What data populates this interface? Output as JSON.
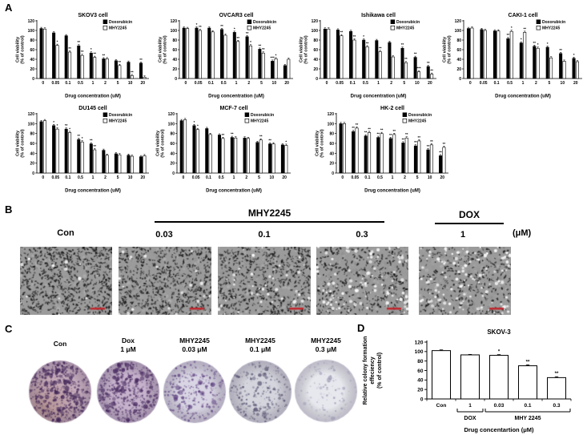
{
  "panels": {
    "a": {
      "label": "A"
    },
    "b": {
      "label": "B",
      "mhy_header": "MHY2245",
      "dox_header": "DOX",
      "cols": [
        "Con",
        "0.03",
        "0.1",
        "0.3",
        "1"
      ],
      "unit": "(μM)",
      "images": [
        {
          "name": "microscopy-con",
          "dark": 760,
          "white": 12,
          "seed": 11
        },
        {
          "name": "microscopy-mhy-0.03",
          "dark": 700,
          "white": 20,
          "seed": 22
        },
        {
          "name": "microscopy-mhy-0.1",
          "dark": 620,
          "white": 40,
          "seed": 33
        },
        {
          "name": "microscopy-mhy-0.3",
          "dark": 430,
          "white": 95,
          "seed": 44
        },
        {
          "name": "microscopy-dox-1",
          "dark": 380,
          "white": 115,
          "seed": 55
        }
      ],
      "scalebar_color": "#c0272d"
    },
    "c": {
      "label": "C",
      "dishes": [
        {
          "line1": "Con",
          "line2": "",
          "base": "#c9b0c2",
          "dot": "#3f2356",
          "dots": 560,
          "blobs": 60,
          "tint": true,
          "seed": 7
        },
        {
          "line1": "Dox",
          "line2": "1 μM",
          "base": "#c6b2cc",
          "dot": "#46285e",
          "dots": 500,
          "blobs": 50,
          "tint": false,
          "seed": 17
        },
        {
          "line1": "MHY2245",
          "line2": "0.03 μM",
          "base": "#d9d5e4",
          "dot": "#5c3f7e",
          "dots": 280,
          "blobs": 25,
          "tint": false,
          "seed": 27
        },
        {
          "line1": "MHY2245",
          "line2": "0.1 μM",
          "base": "#d5d5de",
          "dot": "#54506e",
          "dots": 230,
          "blobs": 18,
          "tint": false,
          "seed": 37
        },
        {
          "line1": "MHY2245",
          "line2": "0.3 μM",
          "base": "#e7e8ee",
          "dot": "#9a9ab4",
          "dots": 130,
          "blobs": 8,
          "tint": false,
          "seed": 47
        }
      ]
    },
    "d": {
      "label": "D"
    }
  },
  "chart_data": [
    {
      "id": "skov3",
      "type": "bar",
      "title": "SKOV3 cell",
      "categories": [
        "0",
        "0.05",
        "0.1",
        "0.5",
        "1",
        "2",
        "5",
        "10",
        "20"
      ],
      "series": [
        {
          "name": "Doxorubicin",
          "fill": "#000000",
          "values": [
            104,
            95,
            89,
            68,
            53,
            41,
            37,
            34,
            32
          ],
          "sig": [
            "",
            "",
            "",
            "**",
            "*",
            "**",
            "",
            "",
            "**"
          ]
        },
        {
          "name": "MHY2245",
          "fill": "#ffffff",
          "values": [
            103,
            69,
            55,
            48,
            44,
            41,
            27,
            6,
            3
          ],
          "sig": [
            "",
            "*",
            "**",
            "**",
            "**",
            "",
            "**",
            "**",
            ""
          ]
        }
      ],
      "ylabel_lines": [
        "Cell viability",
        "(% of control)"
      ],
      "xlabel": "Drug concentration (uM)",
      "ylim": [
        0,
        120
      ],
      "yticks": [
        0,
        20,
        40,
        60,
        80,
        100,
        120
      ],
      "err": 2.5,
      "legend": true
    },
    {
      "id": "ovcar3",
      "type": "bar",
      "title": "OVCAR3 cell",
      "categories": [
        "0",
        "0.05",
        "0.1",
        "0.5",
        "1",
        "2",
        "5",
        "10",
        "20"
      ],
      "series": [
        {
          "name": "Doxorubicin",
          "fill": "#000000",
          "values": [
            105,
            105,
            105,
            102,
            96,
            87,
            61,
            36,
            27
          ],
          "sig": [
            "",
            "*",
            "",
            "**",
            "*",
            "**",
            "**",
            "***",
            ""
          ]
        },
        {
          "name": "MHY2245",
          "fill": "#ffffff",
          "values": [
            104,
            100,
            97,
            90,
            77,
            68,
            53,
            41,
            40
          ],
          "sig": [
            "",
            "**",
            "",
            "",
            "**",
            "*",
            "**",
            "*",
            ""
          ]
        }
      ],
      "ylabel_lines": [
        "Cell viability",
        "(% of control)"
      ],
      "xlabel": "Drug concentration (uM)",
      "ylim": [
        0,
        120
      ],
      "yticks": [
        0,
        20,
        40,
        60,
        80,
        100,
        120
      ],
      "err": 2.5,
      "legend": true
    },
    {
      "id": "ishikawa",
      "type": "bar",
      "title": "Ishikawa cell",
      "categories": [
        "0",
        "0.05",
        "0.1",
        "0.5",
        "1",
        "2",
        "5",
        "10",
        "20"
      ],
      "series": [
        {
          "name": "Doxorubicin",
          "fill": "#000000",
          "values": [
            103,
            101,
            98,
            80,
            79,
            75,
            63,
            44,
            25
          ],
          "sig": [
            "",
            "",
            "",
            "*",
            "",
            "",
            "**",
            "**",
            "**"
          ]
        },
        {
          "name": "MHY2245",
          "fill": "#ffffff",
          "values": [
            103,
            89,
            80,
            66,
            56,
            45,
            33,
            14,
            9
          ],
          "sig": [
            "",
            "**",
            "**",
            "**",
            "**",
            "",
            "**",
            "***",
            "**"
          ]
        }
      ],
      "ylabel_lines": [
        "Cell viability",
        "(% of control)"
      ],
      "xlabel": "Drug concentration (uM)",
      "ylim": [
        0,
        120
      ],
      "yticks": [
        0,
        20,
        40,
        60,
        80,
        100,
        120
      ],
      "err": 2.5,
      "legend": true
    },
    {
      "id": "caki1",
      "type": "bar",
      "title": "CAKI-1 cell",
      "categories": [
        "0",
        "0.05",
        "0.1",
        "0.5",
        "1",
        "2",
        "5",
        "10",
        "20"
      ],
      "series": [
        {
          "name": "Doxorubicin",
          "fill": "#000000",
          "values": [
            104,
            102,
            99,
            83,
            74,
            67,
            65,
            52,
            42
          ],
          "sig": [
            "",
            "",
            "",
            "**",
            "*",
            "**",
            "*",
            "**",
            "*"
          ]
        },
        {
          "name": "MHY2245",
          "fill": "#ffffff",
          "values": [
            105,
            100,
            99,
            98,
            96,
            63,
            43,
            36,
            35
          ],
          "sig": [
            "",
            "",
            "",
            "*",
            "**",
            "*",
            "",
            "",
            ""
          ]
        }
      ],
      "ylabel_lines": [
        "Cell viability",
        "(% of control)"
      ],
      "xlabel": "Drug concentration (uM)",
      "ylim": [
        0,
        120
      ],
      "yticks": [
        0,
        20,
        40,
        60,
        80,
        100,
        120
      ],
      "err": 2.5,
      "legend": true
    },
    {
      "id": "du145",
      "type": "bar",
      "title": "DU145 cell",
      "categories": [
        "0",
        "0.05",
        "0.1",
        "0.5",
        "1",
        "2",
        "5",
        "10",
        "20"
      ],
      "series": [
        {
          "name": "Doxorubicin",
          "fill": "#000000",
          "values": [
            104,
            96,
            89,
            68,
            59,
            46,
            39,
            36,
            33
          ],
          "sig": [
            "",
            "*",
            "**",
            "**",
            "**",
            "",
            "",
            "",
            ""
          ]
        },
        {
          "name": "MHY2245",
          "fill": "#ffffff",
          "values": [
            106,
            89,
            82,
            63,
            47,
            36,
            37,
            34,
            35
          ],
          "sig": [
            "",
            "*",
            "*",
            "*",
            "**",
            "",
            "",
            "",
            ""
          ]
        }
      ],
      "ylabel_lines": [
        "Cell viability",
        "(% of control)"
      ],
      "xlabel": "Drug concentration (uM)",
      "ylim": [
        0,
        120
      ],
      "yticks": [
        0,
        20,
        40,
        60,
        80,
        100,
        120
      ],
      "err": 2.5,
      "legend": true
    },
    {
      "id": "mcf7",
      "type": "bar",
      "title": "MCF-7 cell",
      "categories": [
        "0",
        "0.05",
        "0.1",
        "0.5",
        "1",
        "2",
        "5",
        "10",
        "20"
      ],
      "series": [
        {
          "name": "Doxorubicin",
          "fill": "#000000",
          "values": [
            106,
            96,
            90,
            77,
            72,
            71,
            62,
            59,
            57
          ],
          "sig": [
            "",
            "*",
            "",
            "",
            "**",
            "",
            "",
            "**",
            ""
          ]
        },
        {
          "name": "MHY2245",
          "fill": "#ffffff",
          "values": [
            108,
            88,
            78,
            70,
            71,
            70,
            67,
            59,
            56
          ],
          "sig": [
            "",
            "*",
            "",
            "**",
            "",
            "",
            "**",
            "",
            "*"
          ]
        }
      ],
      "ylabel_lines": [
        "Cell viability",
        "(% of control)"
      ],
      "xlabel": "Drug concentration (uM)",
      "ylim": [
        0,
        120
      ],
      "yticks": [
        0,
        20,
        40,
        60,
        80,
        100,
        120
      ],
      "err": 2.5,
      "legend": true
    },
    {
      "id": "hk2",
      "type": "bar",
      "title": "HK-2 cell",
      "categories": [
        "0",
        "0.05",
        "0.1",
        "0.5",
        "1",
        "2",
        "5",
        "10",
        "20"
      ],
      "series": [
        {
          "name": "Doxorubicin",
          "fill": "#000000",
          "values": [
            100,
            84,
            75,
            72,
            70,
            61,
            55,
            47,
            35
          ],
          "sig": [
            "",
            "**",
            "**",
            "**",
            "**",
            "**",
            "**",
            "**",
            "**"
          ]
        },
        {
          "name": "MHY2245",
          "fill": "#ffffff",
          "values": [
            100,
            91,
            82,
            80,
            78,
            71,
            65,
            57,
            52
          ],
          "sig": [
            "",
            "**",
            "**",
            "**",
            "**",
            "**",
            "**",
            "**",
            "**"
          ]
        }
      ],
      "ylabel_lines": [
        "Cell viability",
        "(% of control)"
      ],
      "xlabel": "Drug concentration (uM)",
      "ylim": [
        0,
        120
      ],
      "yticks": [
        0,
        20,
        40,
        60,
        80,
        100,
        120
      ],
      "err": 2.5,
      "legend": true
    },
    {
      "id": "skov3-colony",
      "type": "bar",
      "title": "SKOV-3",
      "categories": [
        "Con",
        "1",
        "0.03",
        "0.1",
        "0.3"
      ],
      "series": [
        {
          "name": "Colony formation",
          "fill": "#ffffff",
          "values": [
            102,
            93,
            92,
            70,
            45
          ],
          "sig": [
            "",
            "",
            "*",
            "**",
            "**"
          ]
        }
      ],
      "err_each": [
        1.5,
        1,
        1.5,
        2,
        2
      ],
      "groups": [
        {
          "label": "DOX",
          "from": 1,
          "to": 1
        },
        {
          "label": "MHY 2245",
          "from": 2,
          "to": 4
        }
      ],
      "ylabel_lines": [
        "Relative colony formation",
        "effeciency",
        "(% of control)"
      ],
      "xlabel": "Drug concentartion (μM)",
      "ylim": [
        0,
        120
      ],
      "yticks": [
        0,
        20,
        40,
        60,
        80,
        100,
        120
      ],
      "legend": false
    }
  ]
}
